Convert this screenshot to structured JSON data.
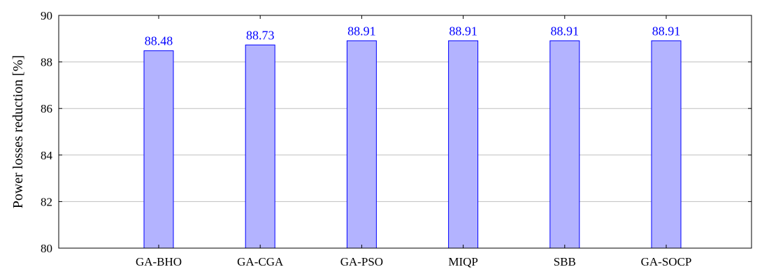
{
  "chart_data": {
    "type": "bar",
    "title": "",
    "xlabel": "",
    "ylabel": "Power losses reduction [%]",
    "categories": [
      "GA-BHO",
      "GA-CGA",
      "GA-PSO",
      "MIQP",
      "SBB",
      "GA-SOCP"
    ],
    "values": [
      88.48,
      88.73,
      88.91,
      88.91,
      88.91,
      88.91
    ],
    "value_labels": [
      "88.48",
      "88.73",
      "88.91",
      "88.91",
      "88.91",
      "88.91"
    ],
    "ylim": [
      80,
      90
    ],
    "yticks": [
      80,
      82,
      84,
      86,
      88,
      90
    ],
    "grid": "horizontal",
    "colors": {
      "bar_fill": "#b3b3ff",
      "bar_stroke": "#0000ff",
      "data_label": "#0000ff",
      "grid": "#bfbfbf",
      "axis": "#000000"
    }
  }
}
